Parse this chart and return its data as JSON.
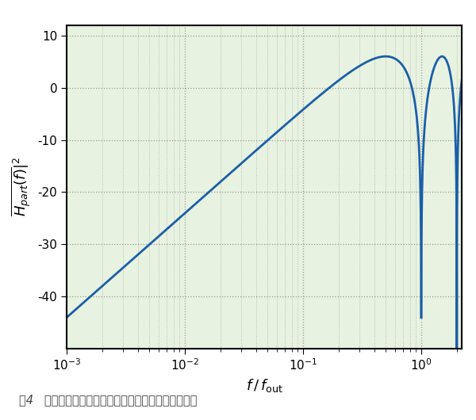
{
  "background_color": "#e8f2e0",
  "line_color": "#1a5fa8",
  "line_width": 2.0,
  "xlim": [
    0.001,
    2.2
  ],
  "ylim": [
    -50,
    12
  ],
  "yticks": [
    -40,
    -30,
    -20,
    -10,
    0,
    10
  ],
  "grid_color": "#777777",
  "caption": "图4   将相位噪声与周期抖动关联在一起的滤波器响应谱",
  "caption_fontsize": 10.5
}
